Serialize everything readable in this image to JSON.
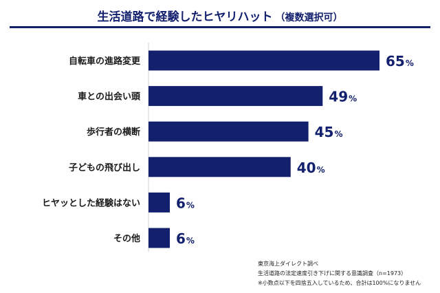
{
  "chart_data": {
    "type": "bar",
    "orientation": "horizontal",
    "title": "生活道路で経験したヒヤリハット",
    "subtitle": "（複数選択可）",
    "categories": [
      "自転車の進路変更",
      "車との出会い頭",
      "歩行者の横断",
      "子どもの飛び出し",
      "ヒヤッとした経験はない",
      "その他"
    ],
    "values": [
      65,
      49,
      45,
      40,
      6,
      6
    ],
    "unit": "%",
    "xlim": [
      0,
      65
    ],
    "bar_color": "#13206e",
    "grid": false,
    "legend": "none"
  },
  "notes": {
    "source": "東京海上ダイレクト調べ",
    "survey": "生活道路の法定速度引き下げに関する意識調査（n=1973）",
    "rounding": "※小数点以下を四捨五入しているため、合計は100%になりません"
  },
  "colors": {
    "primary": "#13206e",
    "text": "#1a1a1a"
  }
}
